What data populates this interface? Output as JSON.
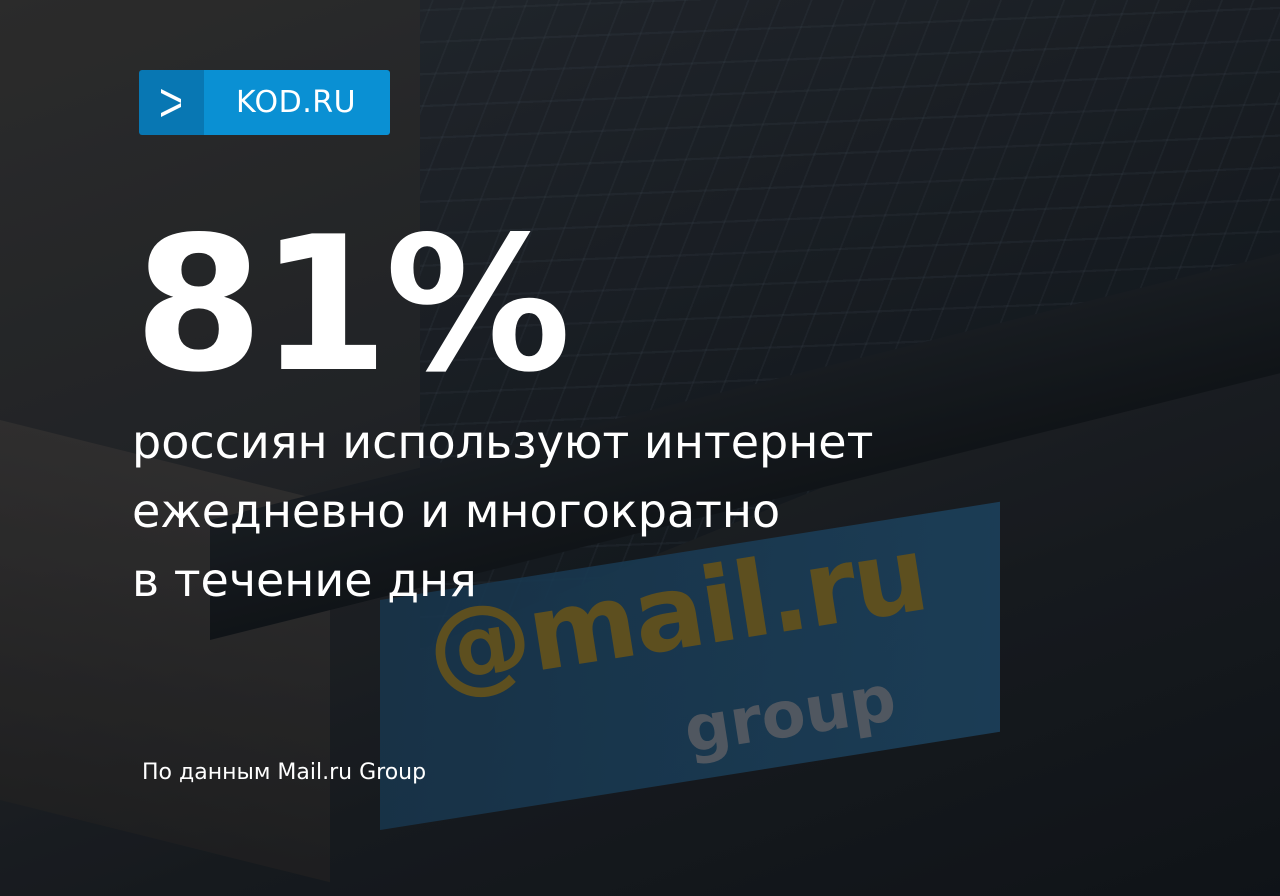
{
  "logo": {
    "name": "KOD.RU",
    "icon": "chevron-right-icon",
    "colors": {
      "dark": "#0877b3",
      "light": "#0a90d3"
    }
  },
  "stat": {
    "value": "81%"
  },
  "description": [
    "россиян используют интернет",
    "ежедневно и многократно",
    "в течение дня"
  ],
  "source": "По данным Mail.ru Group",
  "photo_sign": {
    "logo_text": "@mail.ru",
    "logo_sub": "group"
  }
}
